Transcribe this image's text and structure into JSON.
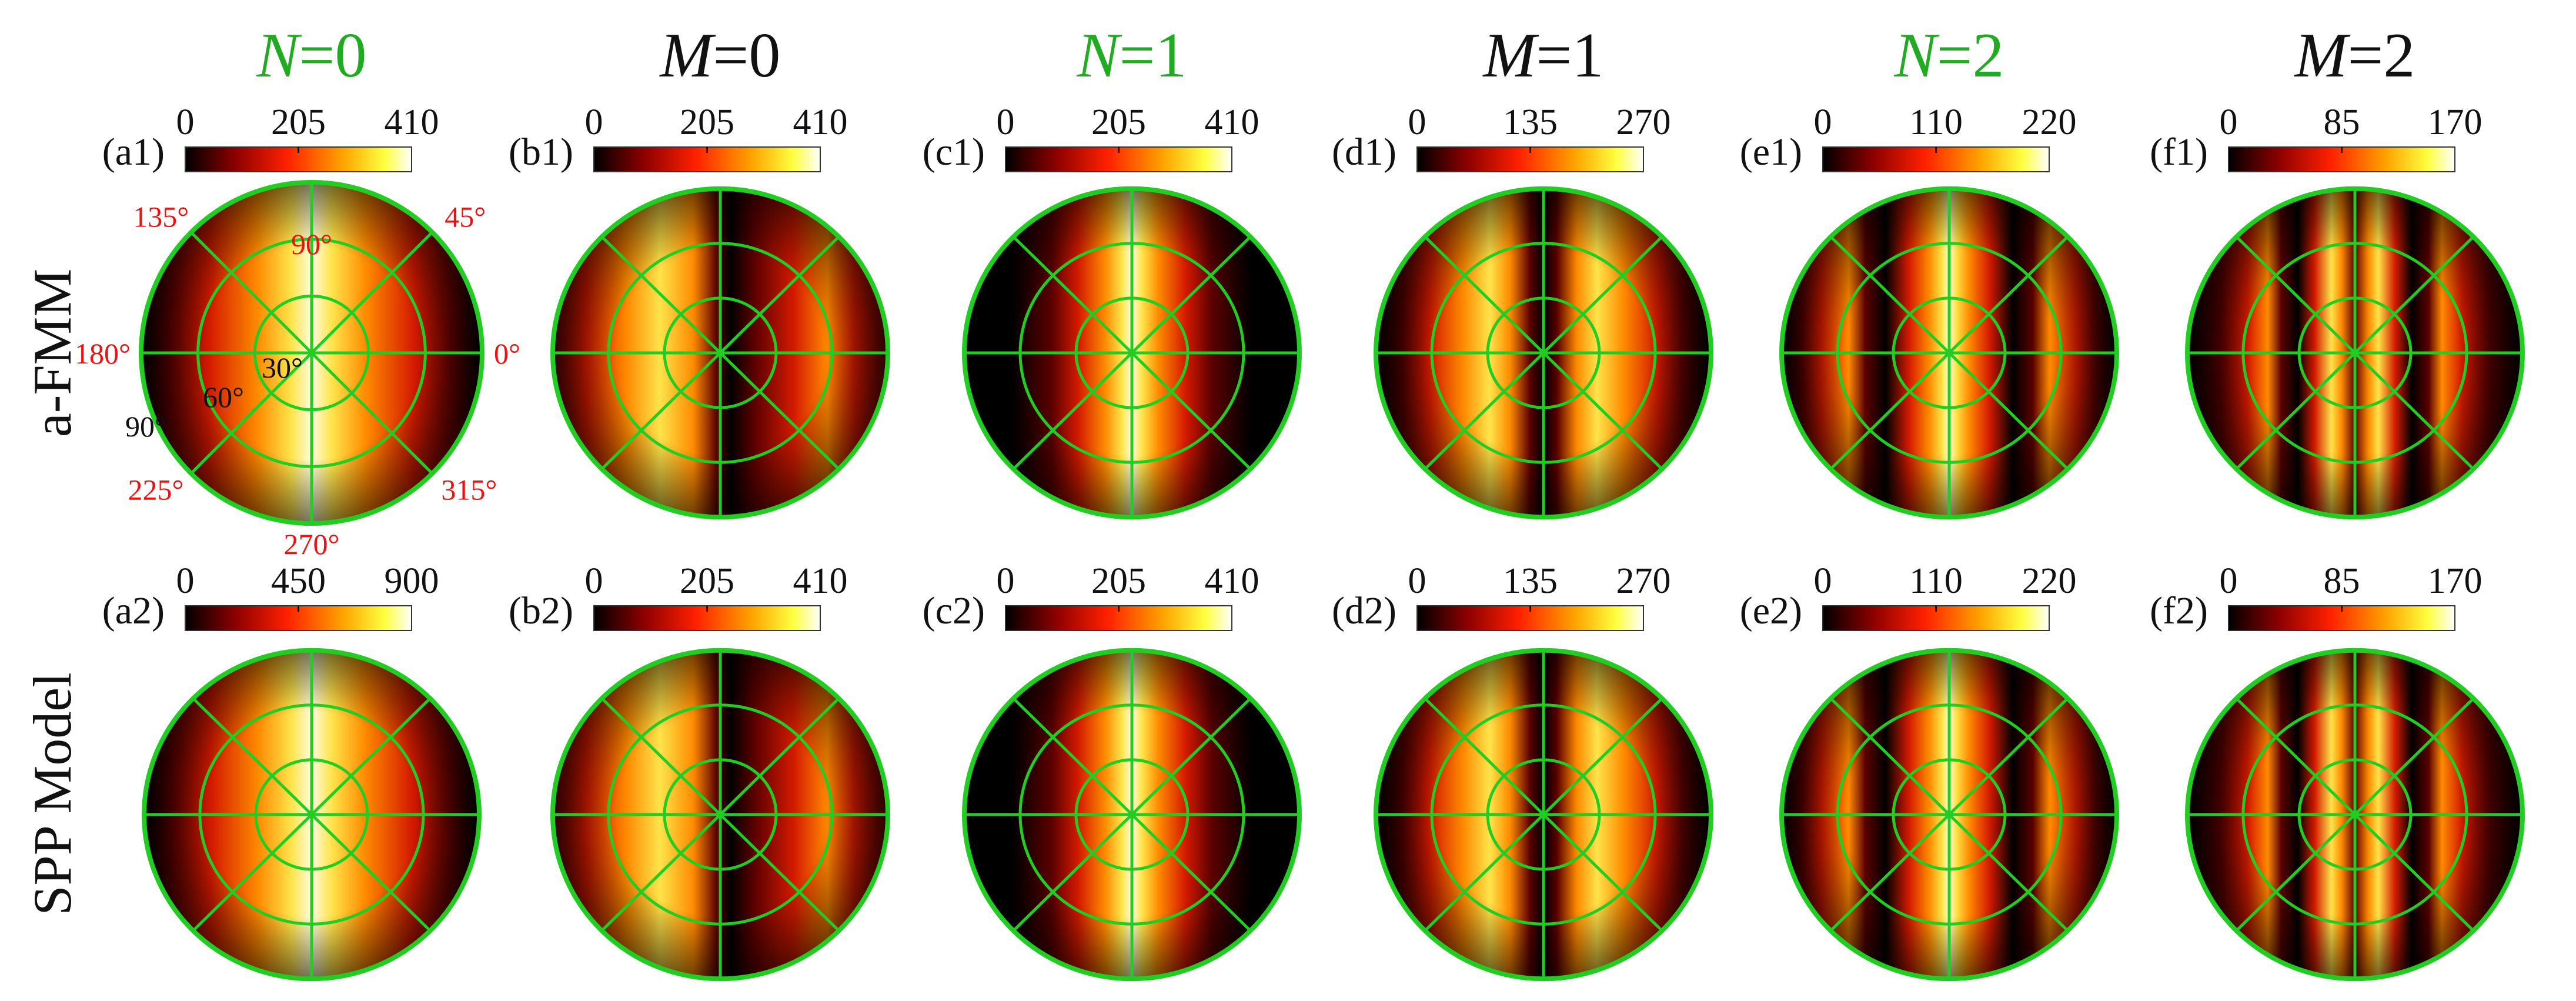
{
  "columns": [
    {
      "title_var": "N",
      "title_rest": "=0",
      "title_color": "#22aa22"
    },
    {
      "title_var": "M",
      "title_rest": "=0",
      "title_color": "#111111"
    },
    {
      "title_var": "N",
      "title_rest": "=1",
      "title_color": "#22aa22"
    },
    {
      "title_var": "M",
      "title_rest": "=1",
      "title_color": "#111111"
    },
    {
      "title_var": "N",
      "title_rest": "=2",
      "title_color": "#22aa22"
    },
    {
      "title_var": "M",
      "title_rest": "=2",
      "title_color": "#111111"
    }
  ],
  "rows": [
    {
      "label": "a-FMM"
    },
    {
      "label": "SPP Model"
    }
  ],
  "panels": [
    [
      {
        "label": "(a1)",
        "ticks": [
          "0",
          "205",
          "410"
        ],
        "pattern": "single"
      },
      {
        "label": "(b1)",
        "ticks": [
          "0",
          "205",
          "410"
        ],
        "pattern": "asym"
      },
      {
        "label": "(c1)",
        "ticks": [
          "0",
          "205",
          "410"
        ],
        "pattern": "single_narrow"
      },
      {
        "label": "(d1)",
        "ticks": [
          "0",
          "135",
          "270"
        ],
        "pattern": "double"
      },
      {
        "label": "(e1)",
        "ticks": [
          "0",
          "110",
          "220"
        ],
        "pattern": "triple"
      },
      {
        "label": "(f1)",
        "ticks": [
          "0",
          "85",
          "170"
        ],
        "pattern": "quad"
      }
    ],
    [
      {
        "label": "(a2)",
        "ticks": [
          "0",
          "450",
          "900"
        ],
        "pattern": "single"
      },
      {
        "label": "(b2)",
        "ticks": [
          "0",
          "205",
          "410"
        ],
        "pattern": "asym"
      },
      {
        "label": "(c2)",
        "ticks": [
          "0",
          "205",
          "410"
        ],
        "pattern": "single_narrow"
      },
      {
        "label": "(d2)",
        "ticks": [
          "0",
          "135",
          "270"
        ],
        "pattern": "double"
      },
      {
        "label": "(e2)",
        "ticks": [
          "0",
          "110",
          "220"
        ],
        "pattern": "triple"
      },
      {
        "label": "(f2)",
        "ticks": [
          "0",
          "85",
          "170"
        ],
        "pattern": "quad"
      }
    ]
  ],
  "polar_axes": {
    "azimuth_labels": [
      "0°",
      "45°",
      "90°",
      "135°",
      "180°",
      "225°",
      "270°",
      "315°"
    ],
    "polar_labels": [
      "30°",
      "60°",
      "90°"
    ],
    "azimuth_color": "#ee1111",
    "polar_color": "#111111"
  },
  "colors": {
    "grid": "#22cc22",
    "colormap": [
      "#000000",
      "#8b0000",
      "#ff2000",
      "#ffa500",
      "#ffff40",
      "#ffffff"
    ]
  }
}
